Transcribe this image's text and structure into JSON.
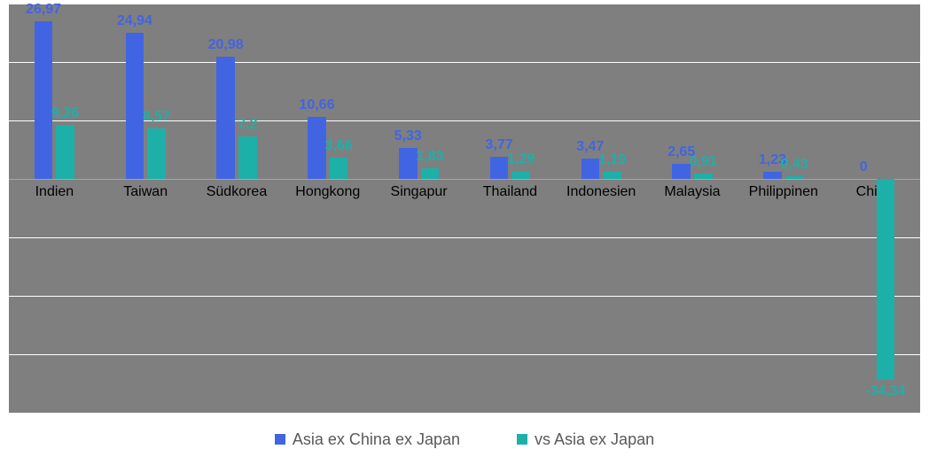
{
  "chart": {
    "type": "bar",
    "background_color": "#7f7f7f",
    "grid_color": "#ffffff",
    "value_label_fontsize": 16,
    "category_label_fontsize": 16,
    "legend_fontsize": 18,
    "y_min": -40,
    "y_max": 30,
    "y_tick_step": 10,
    "bar_rel_width": 0.2,
    "bar_gap": 0.04,
    "series": [
      {
        "name": "Asia ex China ex Japan",
        "color": "#4165e2"
      },
      {
        "name": "vs Asia ex Japan",
        "color": "#1db0a9"
      }
    ],
    "categories": [
      "Indien",
      "Taiwan",
      "Südkorea",
      "Hongkong",
      "Singapur",
      "Thailand",
      "Indonesien",
      "Malaysia",
      "Philippinen",
      "China"
    ],
    "data": [
      {
        "cat": "Indien",
        "a_val": 26.97,
        "a_label": "26,97",
        "b_val": 9.26,
        "b_label": "9,26"
      },
      {
        "cat": "Taiwan",
        "a_val": 24.94,
        "a_label": "24,94",
        "b_val": 8.57,
        "b_label": "8,57"
      },
      {
        "cat": "Südkorea",
        "a_val": 20.98,
        "a_label": "20,98",
        "b_val": 7.2,
        "b_label": "7,2"
      },
      {
        "cat": "Hongkong",
        "a_val": 10.66,
        "a_label": "10,66",
        "b_val": 3.66,
        "b_label": "3,66"
      },
      {
        "cat": "Singapur",
        "a_val": 5.33,
        "a_label": "5,33",
        "b_val": 1.83,
        "b_label": "1,83"
      },
      {
        "cat": "Thailand",
        "a_val": 3.77,
        "a_label": "3,77",
        "b_val": 1.29,
        "b_label": "1,29"
      },
      {
        "cat": "Indonesien",
        "a_val": 3.47,
        "a_label": "3,47",
        "b_val": 1.19,
        "b_label": "1,19"
      },
      {
        "cat": "Malaysia",
        "a_val": 2.65,
        "a_label": "2,65",
        "b_val": 0.91,
        "b_label": "0,91"
      },
      {
        "cat": "Philippinen",
        "a_val": 1.23,
        "a_label": "1,23",
        "b_val": 0.43,
        "b_label": "0,43"
      },
      {
        "cat": "China",
        "a_val": 0.0,
        "a_label": "0",
        "b_val": -34.34,
        "b_label": "-34,34"
      }
    ]
  }
}
